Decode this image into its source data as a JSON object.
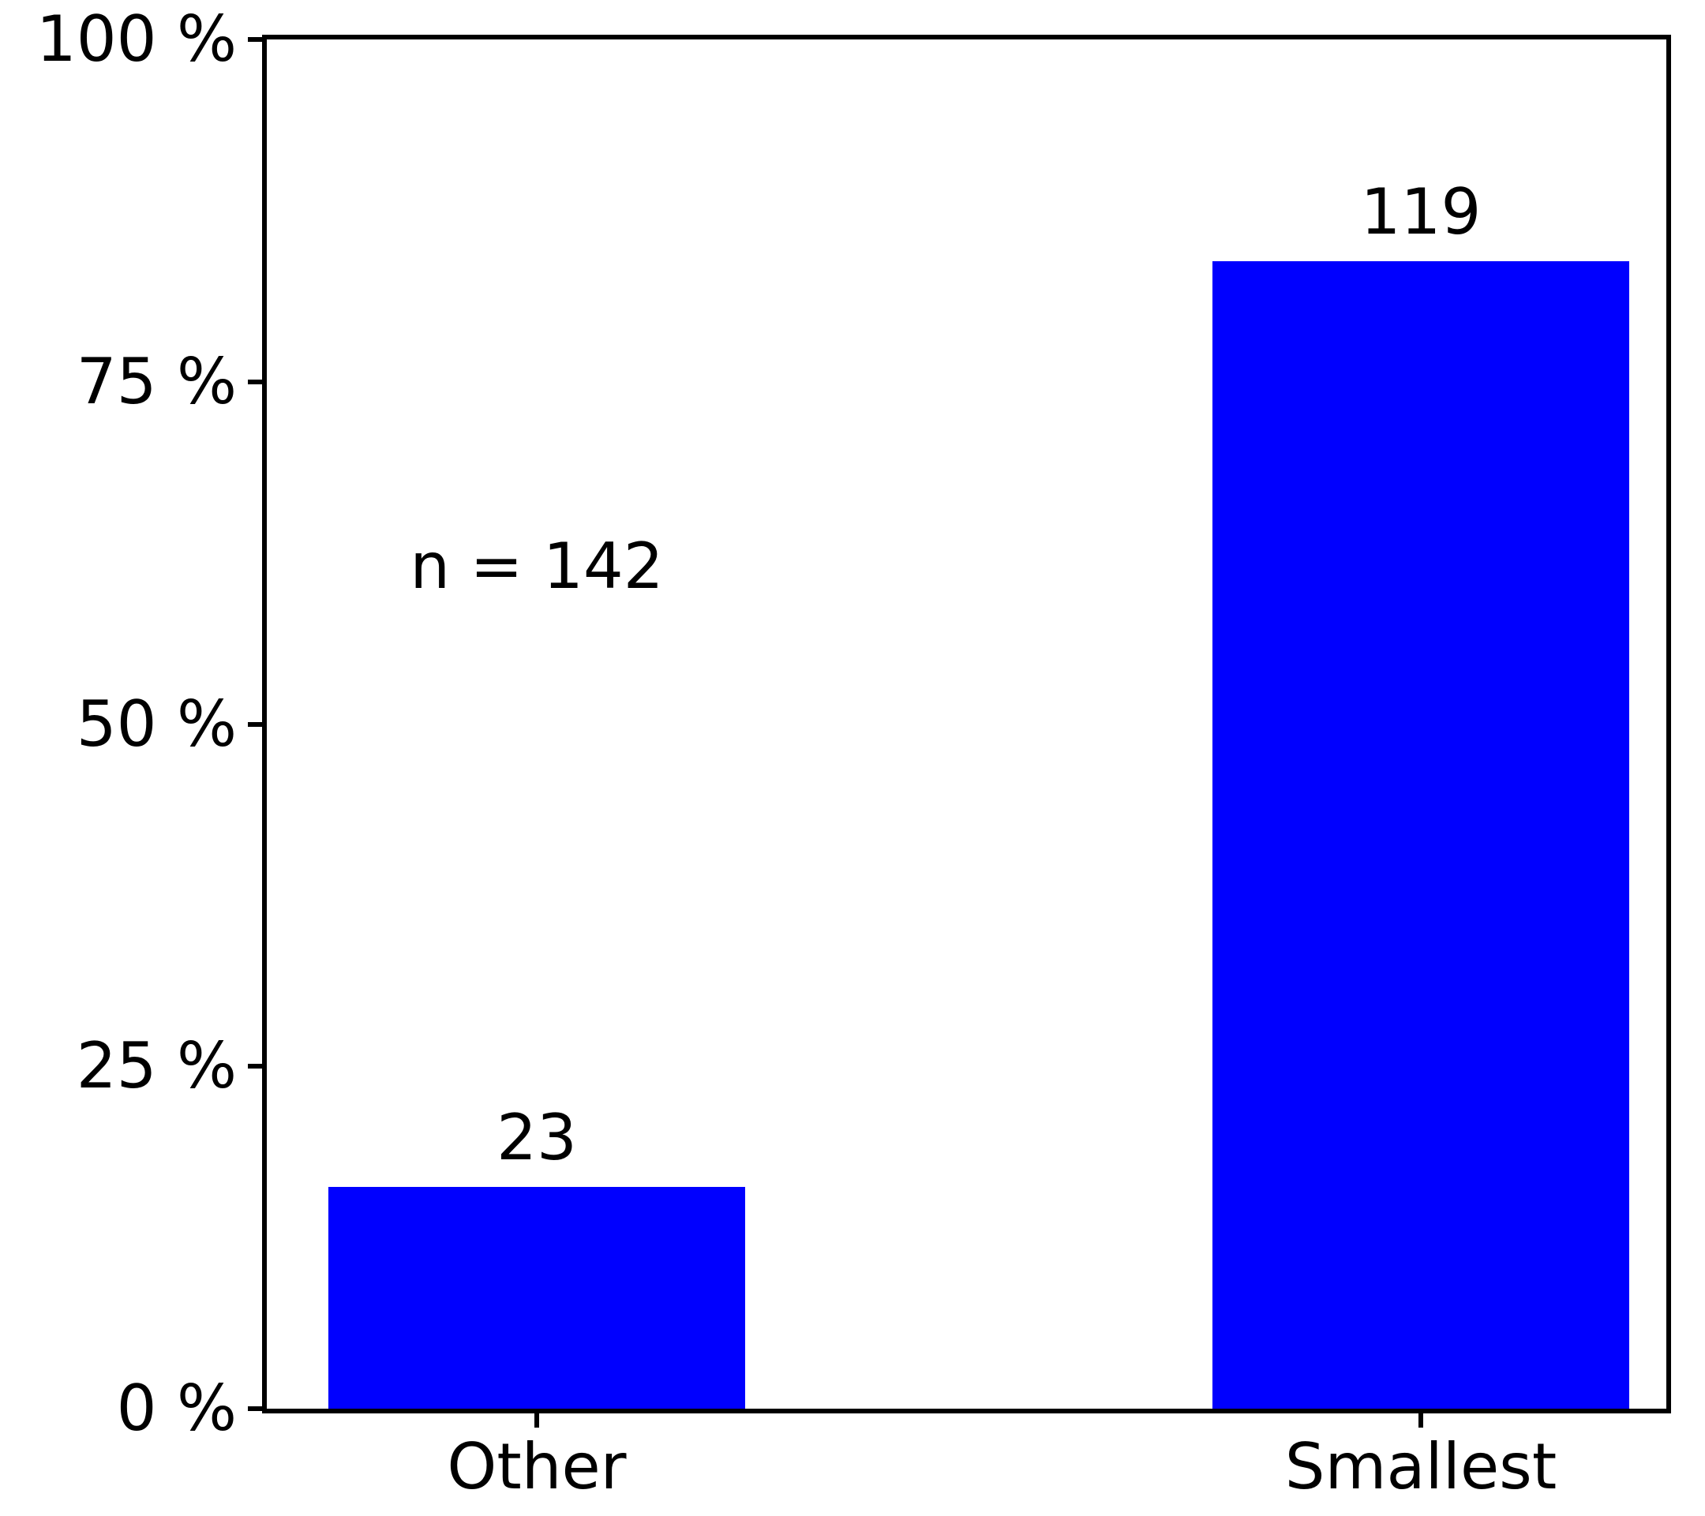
{
  "chart_data": {
    "type": "bar",
    "title": "",
    "xlabel": "",
    "ylabel": "",
    "categories": [
      "Other",
      "Smallest"
    ],
    "values": [
      23,
      119
    ],
    "values_percent": [
      16.2,
      83.8
    ],
    "n_total": 142,
    "bar_value_labels": [
      "23",
      "119"
    ],
    "annotation": "n = 142",
    "y_axis": {
      "tick_percents": [
        0,
        25,
        50,
        75,
        100
      ],
      "tick_labels": [
        "0 %",
        "25 %",
        "50 %",
        "75 %",
        "100 %"
      ],
      "ylim": [
        0,
        100
      ]
    },
    "grid": false,
    "legend": "none",
    "colors": {
      "bar": "#0000ff",
      "axis": "#000000",
      "text": "#000000",
      "background": "#ffffff"
    }
  }
}
